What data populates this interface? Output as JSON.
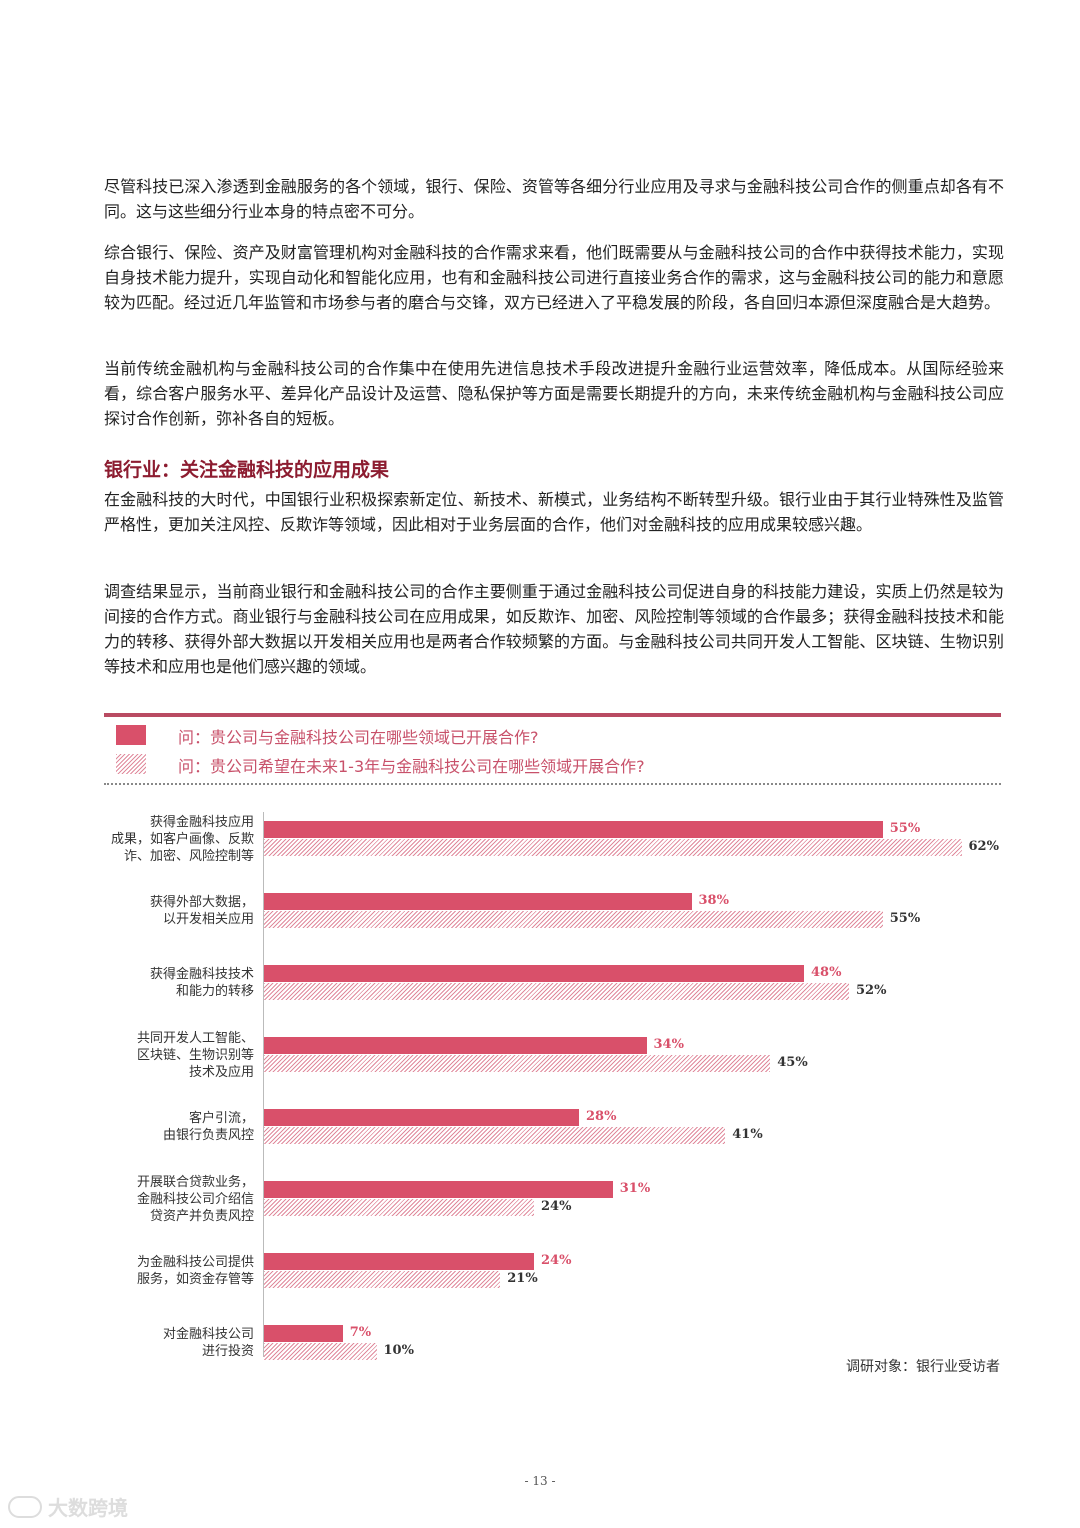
{
  "paragraphs": [
    "尽管科技已深入渗透到金融服务的各个领域，银行、保险、资管等各细分行业应用及寻求与金融科技公司合作的侧重点却各有不同。这与这些细分行业本身的特点密不可分。",
    "综合银行、保险、资产及财富管理机构对金融科技的合作需求来看，他们既需要从与金融科技公司的合作中获得技术能力，实现自身技术能力提升，实现自动化和智能化应用，也有和金融科技公司进行直接业务合作的需求，这与金融科技公司的能力和意愿较为匹配。经过近几年监管和市场参与者的磨合与交锋，双方已经进入了平稳发展的阶段，各自回归本源但深度融合是大趋势。",
    "当前传统金融机构与金融科技公司的合作集中在使用先进信息技术手段改进提升金融行业运营效率，降低成本。从国际经验来看，综合客户服务水平、差异化产品设计及运营、隐私保护等方面是需要长期提升的方向，未来传统金融机构与金融科技公司应探讨合作创新，弥补各自的短板。"
  ],
  "section": {
    "heading": "银行业：关注金融科技的应用成果",
    "paragraphs": [
      "在金融科技的大时代，中国银行业积极探索新定位、新技术、新模式，业务结构不断转型升级。银行业由于其行业特殊性及监管严格性，更加关注风控、反欺诈等领域，因此相对于业务层面的合作，他们对金融科技的应用成果较感兴趣。",
      "调查结果显示，当前商业银行和金融科技公司的合作主要侧重于通过金融科技公司促进自身的科技能力建设，实质上仍然是较为间接的合作方式。商业银行与金融科技公司在应用成果，如反欺诈、加密、风险控制等领域的合作最多；获得金融科技技术和能力的转移、获得外部大数据以开发相关应用也是两者合作较频繁的方面。与金融科技公司共同开发人工智能、区块链、生物识别等技术和应用也是他们感兴趣的领域。"
    ]
  },
  "chart_data": {
    "type": "bar",
    "orientation": "horizontal",
    "categories": [
      "获得金融科技应用成果，如客户画像、反欺诈、加密、风险控制等",
      "获得外部大数据，以开发相关应用",
      "获得金融科技技术和能力的转移",
      "共同开发人工智能、区块链、生物识别等技术及应用",
      "客户引流，由银行负责风控",
      "开展联合贷款业务，金融科技公司介绍信贷资产并负责风控",
      "为金融科技公司提供服务，如资金存管等",
      "对金融科技公司进行投资"
    ],
    "category_lines": [
      [
        "获得金融科技应用",
        "成果，如客户画像、反欺",
        "诈、加密、风险控制等"
      ],
      [
        "获得外部大数据，",
        "以开发相关应用"
      ],
      [
        "获得金融科技技术",
        "和能力的转移"
      ],
      [
        "共同开发人工智能、",
        "区块链、生物识别等",
        "技术及应用"
      ],
      [
        "客户引流，",
        "由银行负责风控"
      ],
      [
        "开展联合贷款业务，",
        "金融科技公司介绍信",
        "贷资产并负责风控"
      ],
      [
        "为金融科技公司提供",
        "服务，如资金存管等"
      ],
      [
        "对金融科技公司",
        "进行投资"
      ]
    ],
    "series": [
      {
        "name": "问：贵公司与金融科技公司在哪些领域已开展合作?",
        "values": [
          55,
          38,
          48,
          34,
          28,
          31,
          24,
          7
        ],
        "color": "#d9506a",
        "pattern": "solid"
      },
      {
        "name": "问：贵公司希望在未来1-3年与金融科技公司在哪些领域开展合作?",
        "values": [
          62,
          55,
          52,
          45,
          41,
          24,
          21,
          10
        ],
        "color": "#e08a9c",
        "pattern": "hatched"
      }
    ],
    "value_suffix": "%",
    "xlim": [
      0,
      70
    ],
    "legend_position": "top",
    "grid": false
  },
  "source_note": "调研对象：银行业受访者",
  "page_number": "- 13 -",
  "watermark": "大数跨境"
}
